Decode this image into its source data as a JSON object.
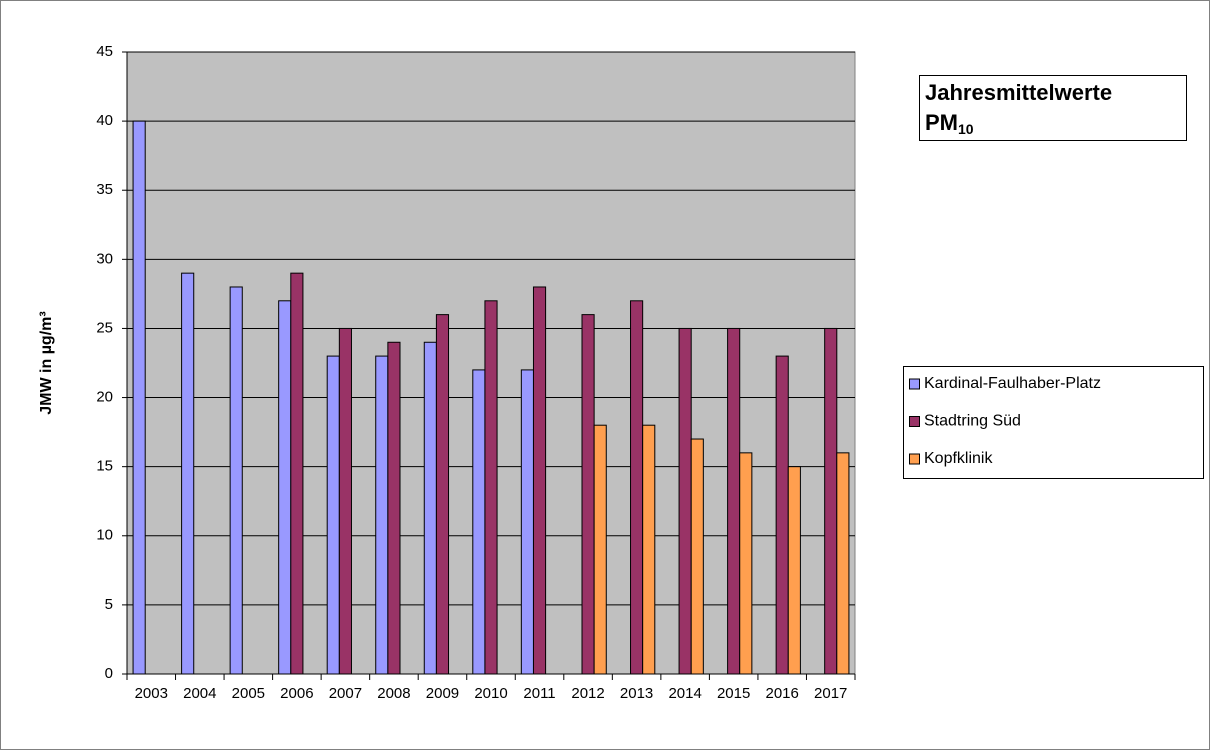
{
  "chart_data": {
    "type": "bar",
    "title": {
      "text": "Jahresmittelwerte",
      "subject": "PM",
      "subscript": "10"
    },
    "y_label": "JMW in µg/m³",
    "categories": [
      "2003",
      "2004",
      "2005",
      "2006",
      "2007",
      "2008",
      "2009",
      "2010",
      "2011",
      "2012",
      "2013",
      "2014",
      "2015",
      "2016",
      "2017"
    ],
    "series": [
      {
        "name": "Kardinal-Faulhaber-Platz",
        "color": "#9999ff",
        "values": [
          40,
          29,
          28,
          27,
          23,
          23,
          24,
          22,
          22,
          null,
          null,
          null,
          null,
          null,
          null
        ]
      },
      {
        "name": "Stadtring Süd",
        "color": "#993366",
        "values": [
          null,
          null,
          null,
          29,
          25,
          24,
          26,
          27,
          28,
          26,
          27,
          25,
          25,
          23,
          25
        ]
      },
      {
        "name": "Kopfklinik",
        "color": "#ff9f4f",
        "values": [
          null,
          null,
          null,
          null,
          null,
          null,
          null,
          null,
          null,
          18,
          18,
          17,
          16,
          15,
          16
        ]
      }
    ],
    "ylim": [
      0,
      45
    ],
    "yticks": [
      0,
      5,
      10,
      15,
      20,
      25,
      30,
      35,
      40,
      45
    ],
    "grid": true,
    "plot_background": "#c0c0c0",
    "legend": "right"
  }
}
